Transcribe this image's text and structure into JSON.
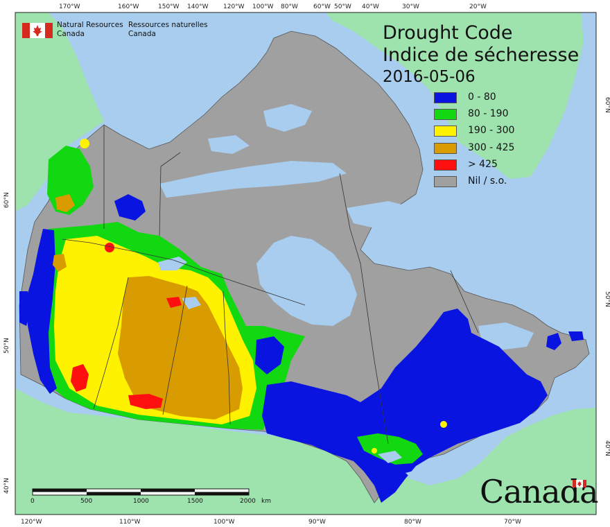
{
  "map": {
    "title_en": "Drought Code",
    "title_fr": "Indice de sécheresse",
    "date": "2016-05-06"
  },
  "agency": {
    "name_en_line1": "Natural Resources",
    "name_en_line2": "Canada",
    "name_fr_line1": "Ressources naturelles",
    "name_fr_line2": "Canada",
    "wordmark": "Canada"
  },
  "legend": [
    {
      "label": "0 - 80",
      "color": "#0a14e0"
    },
    {
      "label": "80 - 190",
      "color": "#12d812"
    },
    {
      "label": "190 - 300",
      "color": "#fff200"
    },
    {
      "label": "300 - 425",
      "color": "#d99c00"
    },
    {
      "label": "> 425",
      "color": "#ff1010"
    },
    {
      "label": "Nil / s.o.",
      "color": "#a0a0a0"
    }
  ],
  "colors": {
    "ocean": "#a8cdee",
    "foreign_land": "#9ee2ae",
    "no_data": "#a0a0a0",
    "border_lines": "#333333"
  },
  "top_ticks": [
    "170°W",
    "160°W",
    "150°W",
    "140°W",
    "120°W",
    "100°W",
    "80°W",
    "60°W",
    "50°W",
    "40°W",
    "30°W",
    "20°W"
  ],
  "bottom_ticks": [
    "120°W",
    "110°W",
    "100°W",
    "90°W",
    "80°W",
    "70°W"
  ],
  "left_ticks": [
    "60°N",
    "50°N",
    "40°N"
  ],
  "right_ticks": [
    "60°N",
    "50°N",
    "40°N"
  ],
  "scale_bar": {
    "labels": [
      "0",
      "500",
      "1000",
      "1500",
      "2000"
    ],
    "unit": "km"
  }
}
